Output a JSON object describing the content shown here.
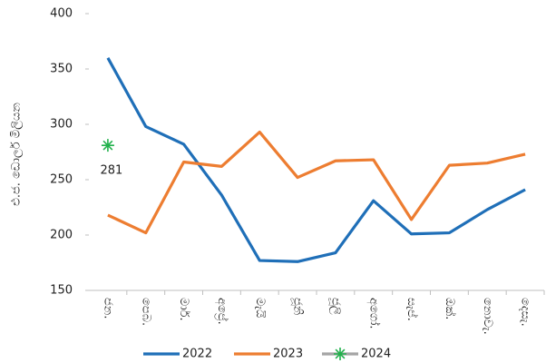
{
  "chart_data": {
    "type": "line",
    "y_label": "එ.ජ. ඩොලර් මිලියන",
    "categories": [
      "ජන.",
      "පෙබ.",
      "මාර්.",
      "අප්‍රේ.",
      "මැයි",
      "ජූනි",
      "ජූලි",
      "අගෝ.",
      "සැප්.",
      "ඔක්.",
      "නොවැ.",
      "දෙසැ."
    ],
    "series": [
      {
        "name": "2022",
        "color": "#1f6fb8",
        "values": [
          360,
          298,
          282,
          236,
          177,
          176,
          184,
          231,
          201,
          202,
          223,
          241
        ]
      },
      {
        "name": "2023",
        "color": "#ed7d31",
        "values": [
          218,
          202,
          266,
          262,
          293,
          252,
          267,
          268,
          214,
          263,
          265,
          273
        ]
      },
      {
        "name": "2024",
        "color": "#a5a5a5",
        "marker_color": "#22b14c",
        "values": [
          281,
          null,
          null,
          null,
          null,
          null,
          null,
          null,
          null,
          null,
          null,
          null
        ]
      }
    ],
    "ylim": [
      150,
      400
    ],
    "yticks": [
      150,
      200,
      250,
      300,
      350,
      400
    ],
    "grid": false,
    "legend": "bottom"
  }
}
